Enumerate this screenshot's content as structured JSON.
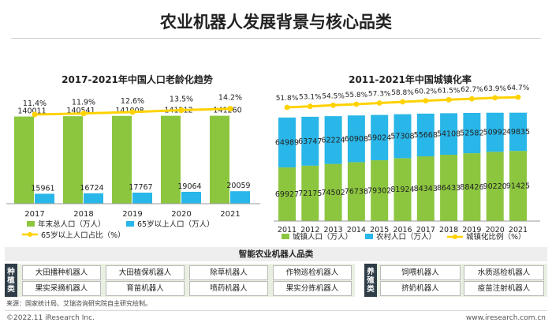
{
  "page_title": "农业机器人发展背景与核心品类",
  "colors": {
    "green": "#8cc63f",
    "blue": "#29b6e8",
    "yellow": "#ffd200",
    "dark": "#2f3d48"
  },
  "chart_data": [
    {
      "type": "bar",
      "title": "2017-2021年中国人口老龄化趋势",
      "categories": [
        "2017",
        "2018",
        "2019",
        "2020",
        "2021"
      ],
      "series": [
        {
          "name": "年末总人口（万人）",
          "kind": "bar",
          "color": "#8cc63f",
          "values": [
            140011,
            140541,
            141008,
            141212,
            141260
          ]
        },
        {
          "name": "65岁以上人口（万人）",
          "kind": "bar",
          "color": "#29b6e8",
          "values": [
            15961,
            16724,
            17767,
            19064,
            20059
          ]
        },
        {
          "name": "65岁以上人口占比（%）",
          "kind": "line",
          "color": "#ffd200",
          "values": [
            11.4,
            11.9,
            12.6,
            13.5,
            14.2
          ]
        }
      ],
      "bar_labels": [
        "140011",
        "140541",
        "141008",
        "141212",
        "141260"
      ],
      "small_labels": [
        "15961",
        "16724",
        "17767",
        "19064",
        "20059"
      ],
      "line_labels": [
        "11.4%",
        "11.9%",
        "12.6%",
        "13.5%",
        "14.2%"
      ]
    },
    {
      "type": "bar",
      "stacked": true,
      "title": "2011-2021年中国城镇化率",
      "categories": [
        "2011",
        "2012",
        "2013",
        "2014",
        "2015",
        "2016",
        "2017",
        "2018",
        "2019",
        "2020",
        "2021"
      ],
      "series": [
        {
          "name": "城镇人口（万人）",
          "kind": "bar",
          "color": "#8cc63f",
          "values": [
            69927,
            72175,
            74502,
            76738,
            79302,
            81924,
            84343,
            86433,
            88426,
            90220,
            91425
          ]
        },
        {
          "name": "农村人口（万人）",
          "kind": "bar",
          "color": "#29b6e8",
          "values": [
            64989,
            63747,
            62224,
            60908,
            59024,
            57308,
            55668,
            54108,
            52582,
            50992,
            49835
          ]
        },
        {
          "name": "城镇化比例（%）",
          "kind": "line",
          "color": "#ffd200",
          "values": [
            51.8,
            53.1,
            54.5,
            55.8,
            57.3,
            58.8,
            60.2,
            61.5,
            62.7,
            63.9,
            64.7
          ]
        }
      ],
      "urban_labels": [
        "69927",
        "72175",
        "74502",
        "76738",
        "79302",
        "81924",
        "84343",
        "86433",
        "88426",
        "90220",
        "91425"
      ],
      "rural_labels": [
        "64989",
        "63747",
        "62224",
        "60908",
        "59024",
        "57308",
        "55668",
        "54108",
        "52582",
        "50992",
        "49835"
      ],
      "line_labels": [
        "51.8%",
        "53.1%",
        "54.5%",
        "55.8%",
        "57.3%",
        "58.8%",
        "60.2%",
        "61.5%",
        "62.7%",
        "63.9%",
        "64.7%"
      ]
    }
  ],
  "robots": {
    "header": "智能农业机器人品类",
    "planting": {
      "label": "种植类",
      "items": [
        "大田播种机器人",
        "大田植保机器人",
        "除草机器人",
        "作物巡检机器人",
        "果实采摘机器人",
        "育苗机器人",
        "喷药机器人",
        "果实分拣机器人"
      ]
    },
    "breeding": {
      "label": "养殖类",
      "items": [
        "饲喂机器人",
        "水质巡检机器人",
        "挤奶机器人",
        "疫苗注射机器人"
      ]
    }
  },
  "source": "来源：国家统计局、艾瑞咨询研究院自主研究绘制。",
  "footer": {
    "copyright": "©2022.11 iResearch Inc.",
    "website": "www.iresearch.com.cn"
  }
}
